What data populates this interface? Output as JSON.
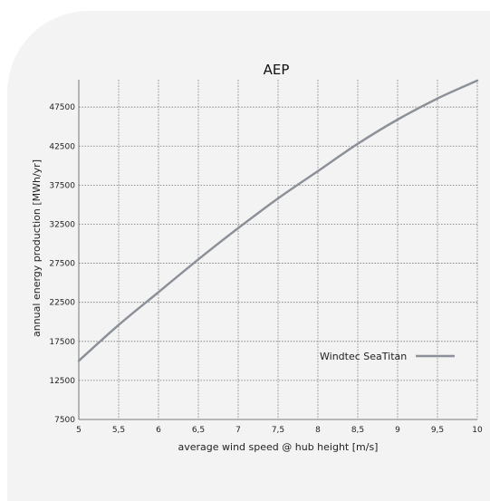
{
  "chart_data": {
    "type": "line",
    "title": "AEP",
    "xlabel": "average wind speed @ hub height [m/s]",
    "ylabel": "annual energy production [MWh/yr]",
    "xlim": [
      5,
      10
    ],
    "ylim": [
      7500,
      51000
    ],
    "x_ticks": [
      "5",
      "5,5",
      "6",
      "6,5",
      "7",
      "7,5",
      "8",
      "8,5",
      "9",
      "9,5",
      "10"
    ],
    "y_ticks": [
      "7500",
      "12500",
      "17500",
      "22500",
      "27500",
      "32500",
      "37500",
      "42500",
      "47500"
    ],
    "grid": true,
    "legend_position": "right",
    "series": [
      {
        "name": "Windtec SeaTitan",
        "color": "#8c9199",
        "x": [
          5,
          5.5,
          6,
          6.5,
          7,
          7.5,
          8,
          8.5,
          9,
          9.5,
          10
        ],
        "y": [
          15000,
          19600,
          23800,
          28000,
          32000,
          35800,
          39300,
          42800,
          45900,
          48600,
          50900
        ]
      }
    ]
  }
}
